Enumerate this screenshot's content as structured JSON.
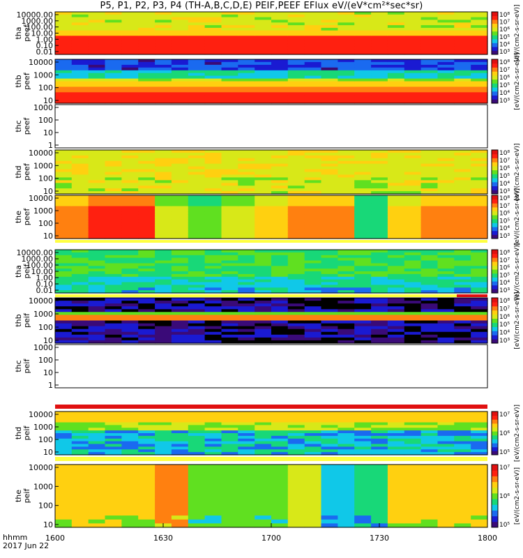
{
  "chart_data": {
    "type": "heatmap",
    "title": "P5, P1, P2, P3, P4 (TH-A,B,C,D,E) PEIF,PEEF EFlux eV/(eV*cm²*sec*sr)",
    "date": "2017 Jun 22",
    "x_title": "hhmm",
    "x_ticks": [
      "1600",
      "1630",
      "1700",
      "1730",
      "1800"
    ],
    "colorbar_unit": "[eV/(cm2-s-sr-eV)]",
    "colorbar_ticks": [
      "10³",
      "10⁴",
      "10⁵",
      "10⁶",
      "10⁷",
      "10⁸"
    ],
    "palette": [
      "#000000",
      "#3a0a78",
      "#1a1ad2",
      "#1a6af0",
      "#10c8e8",
      "#18d878",
      "#60e020",
      "#d8e818",
      "#ffd010",
      "#ff8010",
      "#ff2010",
      "#e01010"
    ],
    "panels": [
      {
        "sc": "tha",
        "species": "peef",
        "yticks": [
          "10000.00",
          "1000.00",
          "100.00",
          "10.00",
          "1.00",
          "0.10",
          "0.01"
        ],
        "has_data": true,
        "colorbar_ticks": [
          "10³",
          "10⁴",
          "10⁵",
          "10⁶",
          "10⁷",
          "10⁸"
        ]
      },
      {
        "sc": "thb",
        "species": "peef",
        "yticks": [
          "10000",
          "1000",
          "100",
          "10"
        ],
        "has_data": true,
        "colorbar_ticks": [
          "10³",
          "10⁴",
          "10⁵",
          "10⁶",
          "10⁷",
          "10⁸"
        ]
      },
      {
        "sc": "thc",
        "species": "peef",
        "yticks": [
          "1000",
          "100",
          "10",
          "1"
        ],
        "has_data": false
      },
      {
        "sc": "thd",
        "species": "peef",
        "yticks": [
          "10000",
          "1000",
          "100",
          "10"
        ],
        "has_data": true,
        "colorbar_ticks": [
          "10³",
          "10⁴",
          "10⁵",
          "10⁶",
          "10⁷",
          "10⁸"
        ]
      },
      {
        "sc": "the",
        "species": "peef",
        "yticks": [
          "10000",
          "1000",
          "100",
          "10"
        ],
        "has_data": true,
        "colorbar_ticks": [
          "10³",
          "10⁴",
          "10⁵",
          "10⁶",
          "10⁷",
          "10⁸"
        ]
      },
      {
        "sc": "tha",
        "species": "peif",
        "yticks": [
          "10000.00",
          "1000.00",
          "100.00",
          "10.00",
          "1.00",
          "0.10",
          "0.01"
        ],
        "has_data": true,
        "colorbar_ticks": [
          "10³",
          "10⁴",
          "10⁵",
          "10⁶",
          "10⁷",
          "10⁸"
        ]
      },
      {
        "sc": "thb",
        "species": "peif",
        "yticks": [
          "10000",
          "1000",
          "100",
          "10"
        ],
        "has_data": true,
        "colorbar_ticks": [
          "10³",
          "10⁴",
          "10⁵",
          "10⁶",
          "10⁷",
          "10⁸"
        ]
      },
      {
        "sc": "thc",
        "species": "peif",
        "yticks": [
          "1000",
          "100",
          "10",
          "1"
        ],
        "has_data": false
      },
      {
        "sc": "thd",
        "species": "peif",
        "yticks": [
          "10000",
          "1000",
          "100",
          "10"
        ],
        "has_data": true,
        "colorbar_ticks": [
          "10⁵",
          "10⁶",
          "10⁷"
        ]
      },
      {
        "sc": "the",
        "species": "peif",
        "yticks": [
          "10000",
          "1000",
          "100",
          "10"
        ],
        "has_data": true,
        "colorbar_ticks": [
          "10⁵",
          "10⁶",
          "10⁷"
        ]
      }
    ]
  }
}
